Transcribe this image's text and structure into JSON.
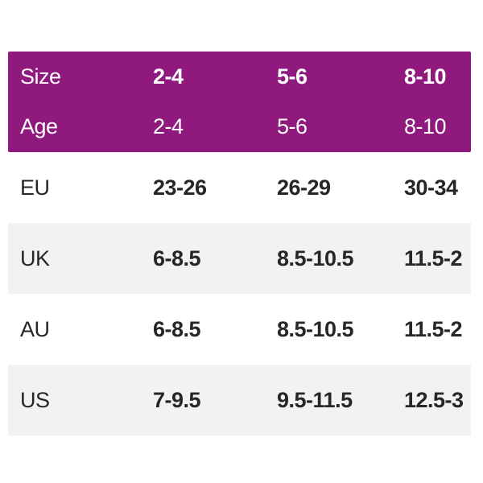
{
  "colors": {
    "header_bg": "#8F197D",
    "header_text": "#FFFFFF",
    "row_bg": "#FFFFFF",
    "row_alt_bg": "#F2F2F2",
    "body_text": "#262626"
  },
  "chart_data": {
    "type": "table",
    "title": "",
    "columns": [
      "label",
      "col1",
      "col2",
      "col3"
    ],
    "header_rows": [
      {
        "label": "Size",
        "values": [
          "2-4",
          "5-6",
          "8-10"
        ],
        "bold_values": true
      },
      {
        "label": "Age",
        "values": [
          "2-4",
          "5-6",
          "8-10"
        ],
        "bold_values": false
      }
    ],
    "body_rows": [
      {
        "label": "EU",
        "values": [
          "23-26",
          "26-29",
          "30-34"
        ]
      },
      {
        "label": "UK",
        "values": [
          "6-8.5",
          "8.5-10.5",
          "11.5-2"
        ]
      },
      {
        "label": "AU",
        "values": [
          "6-8.5",
          "8.5-10.5",
          "11.5-2"
        ]
      },
      {
        "label": "US",
        "values": [
          "7-9.5",
          "9.5-11.5",
          "12.5-3"
        ]
      }
    ],
    "layout": {
      "legend": "none",
      "grid": "off",
      "row_striping": "alternating gray on body rows"
    }
  }
}
